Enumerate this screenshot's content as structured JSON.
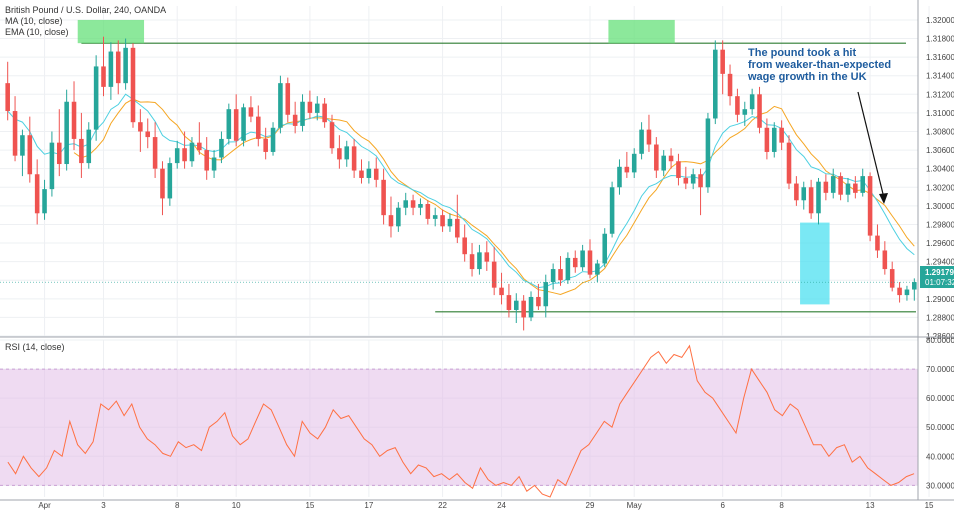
{
  "header": {
    "symbol_line": "British Pound / U.S. Dollar, 240, OANDA",
    "ma_label": "MA (10, close)",
    "ema_label": "EMA (10, close)",
    "rsi_label": "RSI (14, close)"
  },
  "annotation": {
    "line1": "The pound took a hit",
    "line2": "from weaker-than-expected",
    "line3": "wage growth in the UK"
  },
  "price_badge": {
    "price": "1.29179",
    "timer": "01:07:32"
  },
  "colors": {
    "up": "#26a69a",
    "down": "#ef5350",
    "ma": "#f5a623",
    "ema": "#4dd0e1",
    "rsi_line": "#ff7043",
    "rsi_band": "#e1bee7",
    "level_line": "#2e7d32",
    "highlight_green": "#66e07a",
    "highlight_cyan": "#4de0f0"
  },
  "chart_data": [
    {
      "type": "candlestick",
      "title": "British Pound / U.S. Dollar, 240, OANDA",
      "ylim": [
        1.286,
        1.3215
      ],
      "y_ticks": [
        "1.32000",
        "1.31800",
        "1.31600",
        "1.31400",
        "1.31200",
        "1.31000",
        "1.30800",
        "1.30600",
        "1.30400",
        "1.30200",
        "1.30000",
        "1.29800",
        "1.29600",
        "1.29400",
        "1.29200",
        "1.29000",
        "1.28800",
        "1.28600"
      ],
      "x_ticks": [
        {
          "label": "Apr",
          "index": 5
        },
        {
          "label": "3",
          "index": 13
        },
        {
          "label": "8",
          "index": 23
        },
        {
          "label": "10",
          "index": 31
        },
        {
          "label": "15",
          "index": 41
        },
        {
          "label": "17",
          "index": 49
        },
        {
          "label": "22",
          "index": 59
        },
        {
          "label": "24",
          "index": 67
        },
        {
          "label": "29",
          "index": 79
        },
        {
          "label": "May",
          "index": 85
        },
        {
          "label": "6",
          "index": 97
        },
        {
          "label": "8",
          "index": 105
        },
        {
          "label": "13",
          "index": 117
        },
        {
          "label": "15",
          "index": 125
        }
      ],
      "support_level": 1.2886,
      "resistance_level": 1.3175,
      "last_price": 1.29179,
      "candles": [
        [
          1.3132,
          1.3155,
          1.3092,
          1.3102
        ],
        [
          1.3102,
          1.3118,
          1.3048,
          1.3054
        ],
        [
          1.3054,
          1.3082,
          1.3032,
          1.3076
        ],
        [
          1.3076,
          1.3096,
          1.3025,
          1.3034
        ],
        [
          1.3034,
          1.305,
          1.298,
          1.2992
        ],
        [
          1.2992,
          1.3028,
          1.2985,
          1.3018
        ],
        [
          1.3018,
          1.308,
          1.301,
          1.3068
        ],
        [
          1.3068,
          1.3104,
          1.3032,
          1.3045
        ],
        [
          1.3045,
          1.3125,
          1.3038,
          1.3112
        ],
        [
          1.3112,
          1.3134,
          1.306,
          1.3072
        ],
        [
          1.3072,
          1.31,
          1.303,
          1.3046
        ],
        [
          1.3046,
          1.309,
          1.304,
          1.3082
        ],
        [
          1.3082,
          1.3162,
          1.307,
          1.315
        ],
        [
          1.315,
          1.3182,
          1.3118,
          1.3128
        ],
        [
          1.3128,
          1.3176,
          1.3114,
          1.3166
        ],
        [
          1.3166,
          1.3178,
          1.312,
          1.3132
        ],
        [
          1.3132,
          1.318,
          1.3125,
          1.317
        ],
        [
          1.317,
          1.3175,
          1.3084,
          1.309
        ],
        [
          1.309,
          1.3104,
          1.3058,
          1.308
        ],
        [
          1.308,
          1.3094,
          1.3062,
          1.3074
        ],
        [
          1.3074,
          1.309,
          1.303,
          1.304
        ],
        [
          1.304,
          1.3048,
          1.299,
          1.3008
        ],
        [
          1.3008,
          1.3052,
          1.3,
          1.3046
        ],
        [
          1.3046,
          1.307,
          1.304,
          1.3062
        ],
        [
          1.3062,
          1.308,
          1.304,
          1.3048
        ],
        [
          1.3048,
          1.3074,
          1.3042,
          1.3068
        ],
        [
          1.3068,
          1.309,
          1.3055,
          1.306
        ],
        [
          1.306,
          1.3074,
          1.3028,
          1.3038
        ],
        [
          1.3038,
          1.306,
          1.303,
          1.3052
        ],
        [
          1.3052,
          1.308,
          1.3046,
          1.3072
        ],
        [
          1.3072,
          1.311,
          1.3066,
          1.3104
        ],
        [
          1.3104,
          1.312,
          1.3064,
          1.307
        ],
        [
          1.307,
          1.311,
          1.3064,
          1.3106
        ],
        [
          1.3106,
          1.3118,
          1.309,
          1.3096
        ],
        [
          1.3096,
          1.3108,
          1.3064,
          1.3072
        ],
        [
          1.3072,
          1.3084,
          1.305,
          1.3058
        ],
        [
          1.3058,
          1.309,
          1.3054,
          1.3084
        ],
        [
          1.3084,
          1.314,
          1.3078,
          1.3132
        ],
        [
          1.3132,
          1.3138,
          1.309,
          1.3098
        ],
        [
          1.3098,
          1.3112,
          1.3078,
          1.3086
        ],
        [
          1.3086,
          1.312,
          1.308,
          1.3112
        ],
        [
          1.3112,
          1.3124,
          1.3094,
          1.31
        ],
        [
          1.31,
          1.3118,
          1.3092,
          1.311
        ],
        [
          1.311,
          1.3116,
          1.3084,
          1.309
        ],
        [
          1.309,
          1.3098,
          1.3056,
          1.3062
        ],
        [
          1.3062,
          1.3076,
          1.304,
          1.305
        ],
        [
          1.305,
          1.307,
          1.3042,
          1.3064
        ],
        [
          1.3064,
          1.3072,
          1.303,
          1.3038
        ],
        [
          1.3038,
          1.305,
          1.3024,
          1.303
        ],
        [
          1.303,
          1.3048,
          1.3024,
          1.304
        ],
        [
          1.304,
          1.3052,
          1.302,
          1.3028
        ],
        [
          1.3028,
          1.304,
          1.298,
          1.299
        ],
        [
          1.299,
          1.301,
          1.2966,
          1.2978
        ],
        [
          1.2978,
          1.3004,
          1.2972,
          1.2998
        ],
        [
          1.2998,
          1.3014,
          1.299,
          1.3006
        ],
        [
          1.3006,
          1.3012,
          1.299,
          1.2998
        ],
        [
          1.2998,
          1.3008,
          1.299,
          1.3002
        ],
        [
          1.3002,
          1.3006,
          1.298,
          1.2986
        ],
        [
          1.2986,
          1.2998,
          1.2978,
          1.299
        ],
        [
          1.299,
          1.2996,
          1.2972,
          1.2978
        ],
        [
          1.2978,
          1.2992,
          1.2972,
          1.2986
        ],
        [
          1.2986,
          1.3012,
          1.296,
          1.2966
        ],
        [
          1.2966,
          1.298,
          1.294,
          1.2948
        ],
        [
          1.2948,
          1.296,
          1.2924,
          1.2932
        ],
        [
          1.2932,
          1.2958,
          1.2926,
          1.295
        ],
        [
          1.295,
          1.2962,
          1.293,
          1.294
        ],
        [
          1.294,
          1.2956,
          1.2904,
          1.2912
        ],
        [
          1.2912,
          1.2928,
          1.2894,
          1.2904
        ],
        [
          1.2904,
          1.2916,
          1.288,
          1.2888
        ],
        [
          1.2888,
          1.2906,
          1.2874,
          1.2898
        ],
        [
          1.2898,
          1.2904,
          1.2866,
          1.288
        ],
        [
          1.288,
          1.2908,
          1.2876,
          1.2902
        ],
        [
          1.2902,
          1.2916,
          1.2888,
          1.2892
        ],
        [
          1.2892,
          1.2926,
          1.288,
          1.2918
        ],
        [
          1.2918,
          1.2938,
          1.291,
          1.2932
        ],
        [
          1.2932,
          1.2946,
          1.2914,
          1.292
        ],
        [
          1.292,
          1.295,
          1.2916,
          1.2944
        ],
        [
          1.2944,
          1.2952,
          1.2928,
          1.2934
        ],
        [
          1.2934,
          1.2958,
          1.293,
          1.2952
        ],
        [
          1.2952,
          1.2964,
          1.2922,
          1.2926
        ],
        [
          1.2926,
          1.2942,
          1.2918,
          1.2938
        ],
        [
          1.2938,
          1.2976,
          1.2934,
          1.297
        ],
        [
          1.297,
          1.3026,
          1.2966,
          1.302
        ],
        [
          1.302,
          1.305,
          1.3012,
          1.3042
        ],
        [
          1.3042,
          1.3058,
          1.303,
          1.3036
        ],
        [
          1.3036,
          1.3062,
          1.303,
          1.3056
        ],
        [
          1.3056,
          1.309,
          1.305,
          1.3082
        ],
        [
          1.3082,
          1.3098,
          1.3058,
          1.3066
        ],
        [
          1.3066,
          1.3074,
          1.303,
          1.3038
        ],
        [
          1.3038,
          1.306,
          1.3032,
          1.3054
        ],
        [
          1.3054,
          1.3062,
          1.304,
          1.3048
        ],
        [
          1.3048,
          1.3056,
          1.3022,
          1.303
        ],
        [
          1.303,
          1.3042,
          1.3018,
          1.3024
        ],
        [
          1.3024,
          1.304,
          1.3018,
          1.3034
        ],
        [
          1.3034,
          1.304,
          1.299,
          1.302
        ],
        [
          1.302,
          1.31,
          1.3014,
          1.3094
        ],
        [
          1.3094,
          1.3178,
          1.3088,
          1.3168
        ],
        [
          1.3168,
          1.3178,
          1.312,
          1.3142
        ],
        [
          1.3142,
          1.3152,
          1.3108,
          1.3118
        ],
        [
          1.3118,
          1.3126,
          1.309,
          1.3098
        ],
        [
          1.3098,
          1.3112,
          1.3086,
          1.3104
        ],
        [
          1.3104,
          1.3126,
          1.3098,
          1.312
        ],
        [
          1.312,
          1.3128,
          1.3078,
          1.3084
        ],
        [
          1.3084,
          1.3094,
          1.305,
          1.3058
        ],
        [
          1.3058,
          1.309,
          1.3052,
          1.3084
        ],
        [
          1.3084,
          1.3092,
          1.306,
          1.3068
        ],
        [
          1.3068,
          1.3076,
          1.3018,
          1.3024
        ],
        [
          1.3024,
          1.3032,
          1.3,
          1.3006
        ],
        [
          1.3006,
          1.3026,
          1.2996,
          1.302
        ],
        [
          1.302,
          1.3028,
          1.2986,
          1.2992
        ],
        [
          1.2992,
          1.303,
          1.298,
          1.3026
        ],
        [
          1.3026,
          1.3034,
          1.3006,
          1.3014
        ],
        [
          1.3014,
          1.304,
          1.3008,
          1.3032
        ],
        [
          1.3032,
          1.3036,
          1.3006,
          1.3012
        ],
        [
          1.3012,
          1.303,
          1.3004,
          1.3024
        ],
        [
          1.3024,
          1.3032,
          1.3008,
          1.3014
        ],
        [
          1.3014,
          1.304,
          1.301,
          1.3032
        ],
        [
          1.3032,
          1.3036,
          1.2962,
          1.2968
        ],
        [
          1.2968,
          1.298,
          1.2944,
          1.2952
        ],
        [
          1.2952,
          1.2962,
          1.2926,
          1.2932
        ],
        [
          1.2932,
          1.294,
          1.2908,
          1.2912
        ],
        [
          1.2912,
          1.2918,
          1.2896,
          1.2904
        ],
        [
          1.2904,
          1.2914,
          1.2898,
          1.291
        ],
        [
          1.291,
          1.2922,
          1.2898,
          1.2918
        ]
      ]
    },
    {
      "type": "line",
      "title": "RSI (14, close)",
      "ylim": [
        26,
        80
      ],
      "y_ticks": [
        "80.0000",
        "70.0000",
        "60.0000",
        "50.0000",
        "40.0000",
        "30.0000"
      ],
      "band": [
        30,
        70
      ],
      "values": [
        38,
        34,
        40,
        36,
        33,
        36,
        42,
        40,
        52,
        44,
        41,
        45,
        58,
        56,
        59,
        54,
        58,
        50,
        46,
        44,
        41,
        40,
        45,
        43,
        44,
        42,
        50,
        52,
        55,
        47,
        44,
        46,
        52,
        58,
        56,
        50,
        44,
        40,
        52,
        48,
        46,
        50,
        56,
        53,
        54,
        50,
        46,
        44,
        40,
        42,
        43,
        38,
        34,
        37,
        36,
        33,
        34,
        32,
        34,
        31,
        29,
        36,
        32,
        30,
        31,
        30,
        33,
        28,
        30,
        27,
        26,
        32,
        30,
        36,
        42,
        44,
        48,
        52,
        50,
        58,
        62,
        66,
        70,
        74,
        76,
        72,
        75,
        74,
        78,
        66,
        62,
        60,
        56,
        52,
        48,
        60,
        70,
        66,
        62,
        56,
        54,
        58,
        56,
        50,
        44,
        44,
        40,
        43,
        44,
        38,
        40,
        36,
        34,
        32,
        30,
        31,
        33,
        34
      ]
    }
  ]
}
